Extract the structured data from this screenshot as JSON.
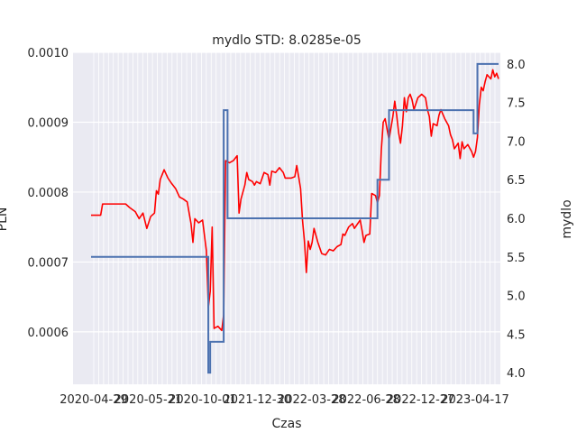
{
  "chart_data": {
    "type": "line",
    "title": "mydlo STD: 8.0285e-05",
    "xlabel": "Czas",
    "ylabel_left": "PLN",
    "ylabel_right": "mydlo",
    "x_tick_labels": [
      "2020-04-29",
      "2020-05-21",
      "2020-10-01",
      "2021-12-30",
      "2022-03-28",
      "2022-06-28",
      "2022-12-27",
      "2023-04-17"
    ],
    "ylim_left": [
      0.000525,
      0.001
    ],
    "ylim_right": [
      3.85,
      8.15
    ],
    "yticks_left": [
      "0.0006",
      "0.0007",
      "0.0008",
      "0.0009",
      "0.0010"
    ],
    "yticks_right": [
      "4.0",
      "4.5",
      "5.0",
      "5.5",
      "6.0",
      "6.5",
      "7.0",
      "7.5",
      "8.0"
    ],
    "colors": {
      "price": "#ff0000",
      "mydlo": "#4c72b0",
      "axes_bg": "#eaeaf2",
      "grid": "#ffffff"
    },
    "series": [
      {
        "axis": "left",
        "color": "#ff0000",
        "points": [
          [
            0,
            0.000767
          ],
          [
            5,
            0.000767
          ],
          [
            6,
            0.000783
          ],
          [
            18,
            0.000783
          ],
          [
            20,
            0.000778
          ],
          [
            23,
            0.000772
          ],
          [
            25,
            0.000762
          ],
          [
            27,
            0.00077
          ],
          [
            29,
            0.000748
          ],
          [
            31,
            0.000765
          ],
          [
            33,
            0.00077
          ],
          [
            34,
            0.000802
          ],
          [
            35,
            0.000797
          ],
          [
            36,
            0.000818
          ],
          [
            38,
            0.000832
          ],
          [
            40,
            0.00082
          ],
          [
            42,
            0.000812
          ],
          [
            44,
            0.000805
          ],
          [
            46,
            0.000793
          ],
          [
            48,
            0.00079
          ],
          [
            50,
            0.000786
          ],
          [
            52,
            0.000755
          ],
          [
            53,
            0.000728
          ],
          [
            54,
            0.000762
          ],
          [
            56,
            0.000756
          ],
          [
            58,
            0.00076
          ],
          [
            60,
            0.000716
          ],
          [
            61,
            0.000635
          ],
          [
            62,
            0.000658
          ],
          [
            63,
            0.00075
          ],
          [
            64,
            0.000605
          ],
          [
            66,
            0.000608
          ],
          [
            68,
            0.000602
          ],
          [
            69,
            0.000625
          ],
          [
            70,
            0.000845
          ],
          [
            72,
            0.000842
          ],
          [
            74,
            0.000845
          ],
          [
            76,
            0.000852
          ],
          [
            77,
            0.00077
          ],
          [
            78,
            0.00079
          ],
          [
            80,
            0.00081
          ],
          [
            81,
            0.000828
          ],
          [
            82,
            0.000818
          ],
          [
            84,
            0.000815
          ],
          [
            85,
            0.00081
          ],
          [
            86,
            0.000815
          ],
          [
            88,
            0.000812
          ],
          [
            89,
            0.00082
          ],
          [
            90,
            0.000828
          ],
          [
            92,
            0.000825
          ],
          [
            93,
            0.00081
          ],
          [
            94,
            0.00083
          ],
          [
            96,
            0.000828
          ],
          [
            98,
            0.000835
          ],
          [
            100,
            0.000828
          ],
          [
            101,
            0.00082
          ],
          [
            104,
            0.00082
          ],
          [
            106,
            0.000822
          ],
          [
            107,
            0.000838
          ],
          [
            108,
            0.000822
          ],
          [
            109,
            0.000805
          ],
          [
            110,
            0.00076
          ],
          [
            111,
            0.00073
          ],
          [
            112,
            0.000685
          ],
          [
            113,
            0.00073
          ],
          [
            114,
            0.000718
          ],
          [
            115,
            0.000728
          ],
          [
            116,
            0.000748
          ],
          [
            118,
            0.000728
          ],
          [
            120,
            0.000712
          ],
          [
            122,
            0.00071
          ],
          [
            124,
            0.000718
          ],
          [
            126,
            0.000716
          ],
          [
            128,
            0.000722
          ],
          [
            130,
            0.000725
          ],
          [
            131,
            0.00074
          ],
          [
            132,
            0.000738
          ],
          [
            134,
            0.00075
          ],
          [
            136,
            0.000755
          ],
          [
            137,
            0.000748
          ],
          [
            138,
            0.000752
          ],
          [
            140,
            0.00076
          ],
          [
            141,
            0.000745
          ],
          [
            142,
            0.000728
          ],
          [
            143,
            0.000738
          ],
          [
            145,
            0.00074
          ],
          [
            146,
            0.000798
          ],
          [
            148,
            0.000795
          ],
          [
            149,
            0.000785
          ],
          [
            150,
            0.000795
          ],
          [
            151,
            0.00086
          ],
          [
            152,
            0.0009
          ],
          [
            153,
            0.000905
          ],
          [
            154,
            0.00089
          ],
          [
            155,
            0.000875
          ],
          [
            157,
            0.000908
          ],
          [
            158,
            0.00093
          ],
          [
            159,
            0.00091
          ],
          [
            160,
            0.000885
          ],
          [
            161,
            0.00087
          ],
          [
            162,
            0.000895
          ],
          [
            163,
            0.000935
          ],
          [
            164,
            0.000915
          ],
          [
            165,
            0.000935
          ],
          [
            166,
            0.00094
          ],
          [
            167,
            0.000932
          ],
          [
            168,
            0.000918
          ],
          [
            170,
            0.000935
          ],
          [
            172,
            0.00094
          ],
          [
            174,
            0.000935
          ],
          [
            175,
            0.000918
          ],
          [
            176,
            0.000908
          ],
          [
            177,
            0.00088
          ],
          [
            178,
            0.000898
          ],
          [
            180,
            0.000895
          ],
          [
            181,
            0.00091
          ],
          [
            182,
            0.000918
          ],
          [
            184,
            0.000905
          ],
          [
            186,
            0.000895
          ],
          [
            187,
            0.000882
          ],
          [
            188,
            0.000875
          ],
          [
            189,
            0.000862
          ],
          [
            191,
            0.00087
          ],
          [
            192,
            0.000848
          ],
          [
            193,
            0.000872
          ],
          [
            194,
            0.000862
          ],
          [
            196,
            0.000868
          ],
          [
            198,
            0.000858
          ],
          [
            199,
            0.00085
          ],
          [
            200,
            0.000858
          ],
          [
            201,
            0.000878
          ],
          [
            202,
            0.000925
          ],
          [
            203,
            0.00095
          ],
          [
            204,
            0.000945
          ],
          [
            205,
            0.000958
          ],
          [
            206,
            0.000968
          ],
          [
            207,
            0.000965
          ],
          [
            208,
            0.000962
          ],
          [
            209,
            0.000975
          ],
          [
            210,
            0.000965
          ],
          [
            211,
            0.00097
          ],
          [
            212,
            0.000962
          ]
        ]
      },
      {
        "axis": "right",
        "color": "#4c72b0",
        "points": [
          [
            0,
            5.5
          ],
          [
            60,
            5.5
          ],
          [
            61,
            4.0
          ],
          [
            62,
            4.4
          ],
          [
            68,
            4.4
          ],
          [
            69,
            7.4
          ],
          [
            70,
            7.4
          ],
          [
            71,
            6.0
          ],
          [
            148,
            6.0
          ],
          [
            149,
            6.5
          ],
          [
            154,
            6.5
          ],
          [
            155,
            7.4
          ],
          [
            198,
            7.4
          ],
          [
            199,
            7.1
          ],
          [
            200,
            7.1
          ],
          [
            201,
            8.0
          ],
          [
            212,
            8.0
          ]
        ]
      }
    ]
  }
}
